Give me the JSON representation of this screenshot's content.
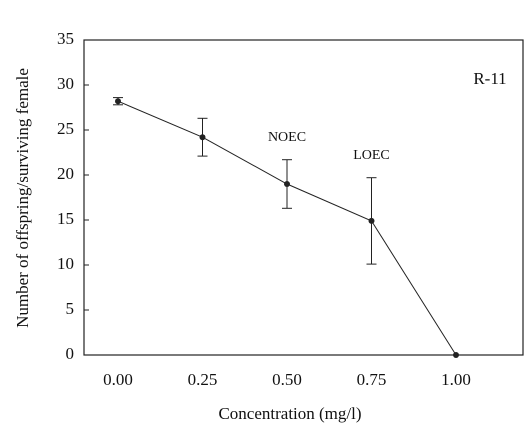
{
  "chart_data": {
    "type": "line",
    "x_label": "Concentration (mg/l)",
    "y_label": "Number of offspring/surviving female",
    "annotations": [
      "NOEC",
      "LOEC"
    ],
    "panel_label": "R-11",
    "categories": [
      "0.00",
      "0.25",
      "0.50",
      "0.75",
      "1.00"
    ],
    "values": [
      28.2,
      24.2,
      19.0,
      14.9,
      0
    ],
    "errors": [
      0.4,
      2.1,
      2.7,
      4.8,
      0
    ],
    "color": "#222222",
    "ylim": [
      0,
      35
    ],
    "yticks": [
      0,
      5,
      10,
      15,
      20,
      25,
      30,
      35
    ]
  }
}
